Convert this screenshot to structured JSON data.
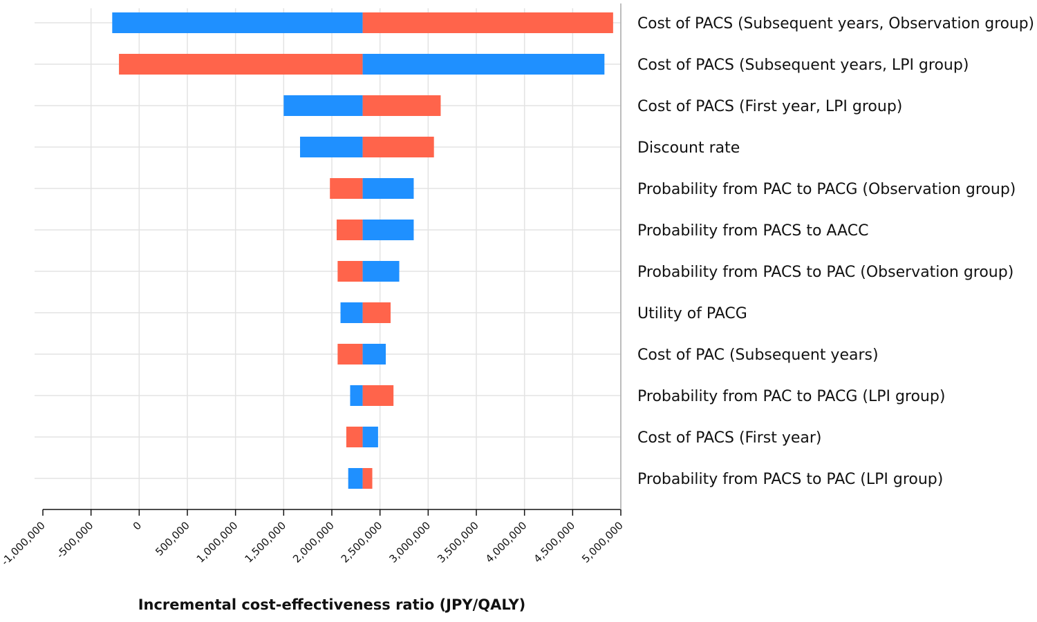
{
  "chart_data": {
    "type": "bar",
    "subtype": "tornado",
    "xlabel": "Incremental cost-effectiveness ratio (JPY/QALY)",
    "ylabel": "",
    "xlim": [
      -1000000,
      5000000
    ],
    "base_value": 2320000,
    "x_ticks": [
      -1000000,
      -500000,
      0,
      500000,
      1000000,
      1500000,
      2000000,
      2500000,
      3000000,
      3500000,
      4000000,
      4500000,
      5000000
    ],
    "x_tick_labels": [
      "-1,000,000",
      "-500,000",
      "0",
      "500,000",
      "1,000,000",
      "1,500,000",
      "2,000,000",
      "2,500,000",
      "3,000,000",
      "3,500,000",
      "4,000,000",
      "4,500,000",
      "5,000,000"
    ],
    "grid": true,
    "colors": {
      "blue": "#1f90ff",
      "red": "#ff644b"
    },
    "categories": [
      "Cost of PACS (Subsequent years, Observation group)",
      "Cost of PACS (Subsequent years, LPI group)",
      "Cost of PACS (First year, LPI group)",
      "Discount rate",
      "Probability from PAC to PACG (Observation group)",
      "Probability from PACS to AACC",
      "Probability from PACS to PAC (Observation group)",
      "Utility of PACG",
      "Cost of PAC (Subsequent years)",
      "Probability from PAC to PACG (LPI group)",
      "Cost of PACS (First year)",
      "Probability from PACS to PAC (LPI group)"
    ],
    "bars": [
      {
        "left_value": -280000,
        "right_value": 4920000,
        "left_color": "blue",
        "right_color": "red"
      },
      {
        "left_value": -210000,
        "right_value": 4830000,
        "left_color": "red",
        "right_color": "blue"
      },
      {
        "left_value": 1500000,
        "right_value": 3130000,
        "left_color": "blue",
        "right_color": "red"
      },
      {
        "left_value": 1670000,
        "right_value": 3060000,
        "left_color": "blue",
        "right_color": "red"
      },
      {
        "left_value": 1980000,
        "right_value": 2850000,
        "left_color": "red",
        "right_color": "blue"
      },
      {
        "left_value": 2050000,
        "right_value": 2850000,
        "left_color": "red",
        "right_color": "blue"
      },
      {
        "left_value": 2060000,
        "right_value": 2700000,
        "left_color": "red",
        "right_color": "blue"
      },
      {
        "left_value": 2090000,
        "right_value": 2610000,
        "left_color": "blue",
        "right_color": "red"
      },
      {
        "left_value": 2060000,
        "right_value": 2560000,
        "left_color": "red",
        "right_color": "blue"
      },
      {
        "left_value": 2190000,
        "right_value": 2640000,
        "left_color": "blue",
        "right_color": "red"
      },
      {
        "left_value": 2150000,
        "right_value": 2480000,
        "left_color": "red",
        "right_color": "blue"
      },
      {
        "left_value": 2170000,
        "right_value": 2420000,
        "left_color": "blue",
        "right_color": "red"
      }
    ]
  }
}
